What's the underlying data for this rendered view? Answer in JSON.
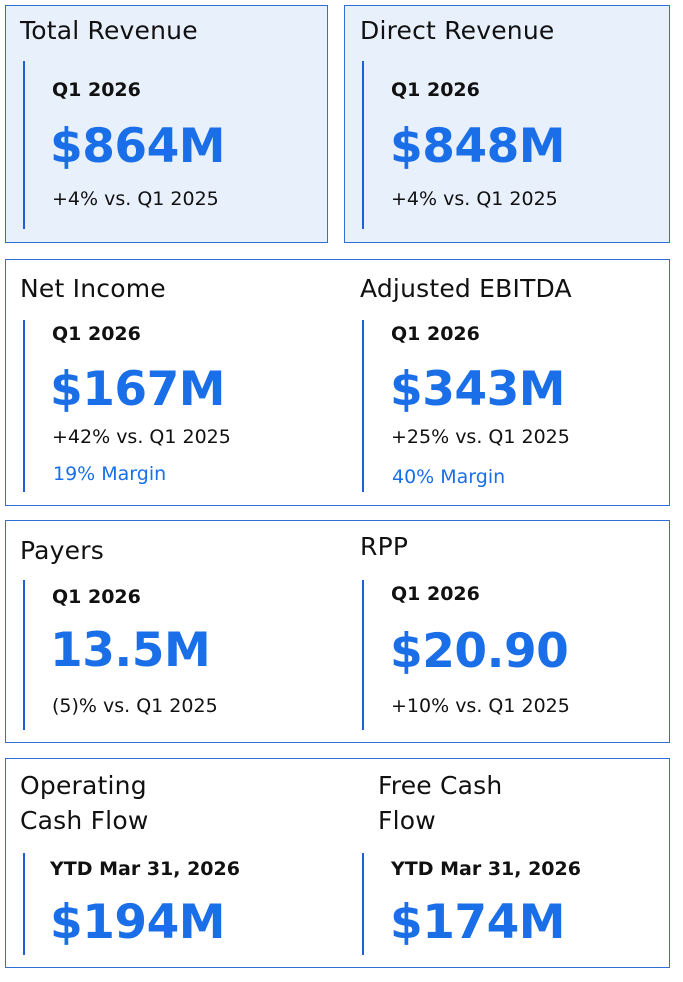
{
  "colors": {
    "accent": "#1a6fe8",
    "border": "#2f6fd6",
    "tint": "#e8f0fc"
  },
  "cards": {
    "total_revenue": {
      "title": "Total Revenue",
      "period": "Q1 2026",
      "value": "$864M",
      "change": "+4% vs. Q1 2025"
    },
    "direct_revenue": {
      "title": "Direct Revenue",
      "period": "Q1 2026",
      "value": "$848M",
      "change": "+4% vs. Q1 2025"
    },
    "net_income": {
      "title": "Net Income",
      "period": "Q1 2026",
      "value": "$167M",
      "change": "+42% vs. Q1 2025",
      "margin": "19% Margin"
    },
    "adjusted_ebitda": {
      "title": "Adjusted EBITDA",
      "period": "Q1 2026",
      "value": "$343M",
      "change": "+25% vs. Q1 2025",
      "margin": "40% Margin"
    },
    "payers": {
      "title": "Payers",
      "period": "Q1 2026",
      "value": "13.5M",
      "change": "(5)% vs. Q1 2025"
    },
    "rpp": {
      "title": "RPP",
      "period": "Q1 2026",
      "value": "$20.90",
      "change": "+10% vs. Q1 2025"
    },
    "operating_cash_flow": {
      "title_line1": "Operating",
      "title_line2": "Cash Flow",
      "period": "YTD Mar 31, 2026",
      "value": "$194M"
    },
    "free_cash_flow": {
      "title_line1": "Free Cash",
      "title_line2": "Flow",
      "period": "YTD Mar 31, 2026",
      "value": "$174M"
    }
  }
}
